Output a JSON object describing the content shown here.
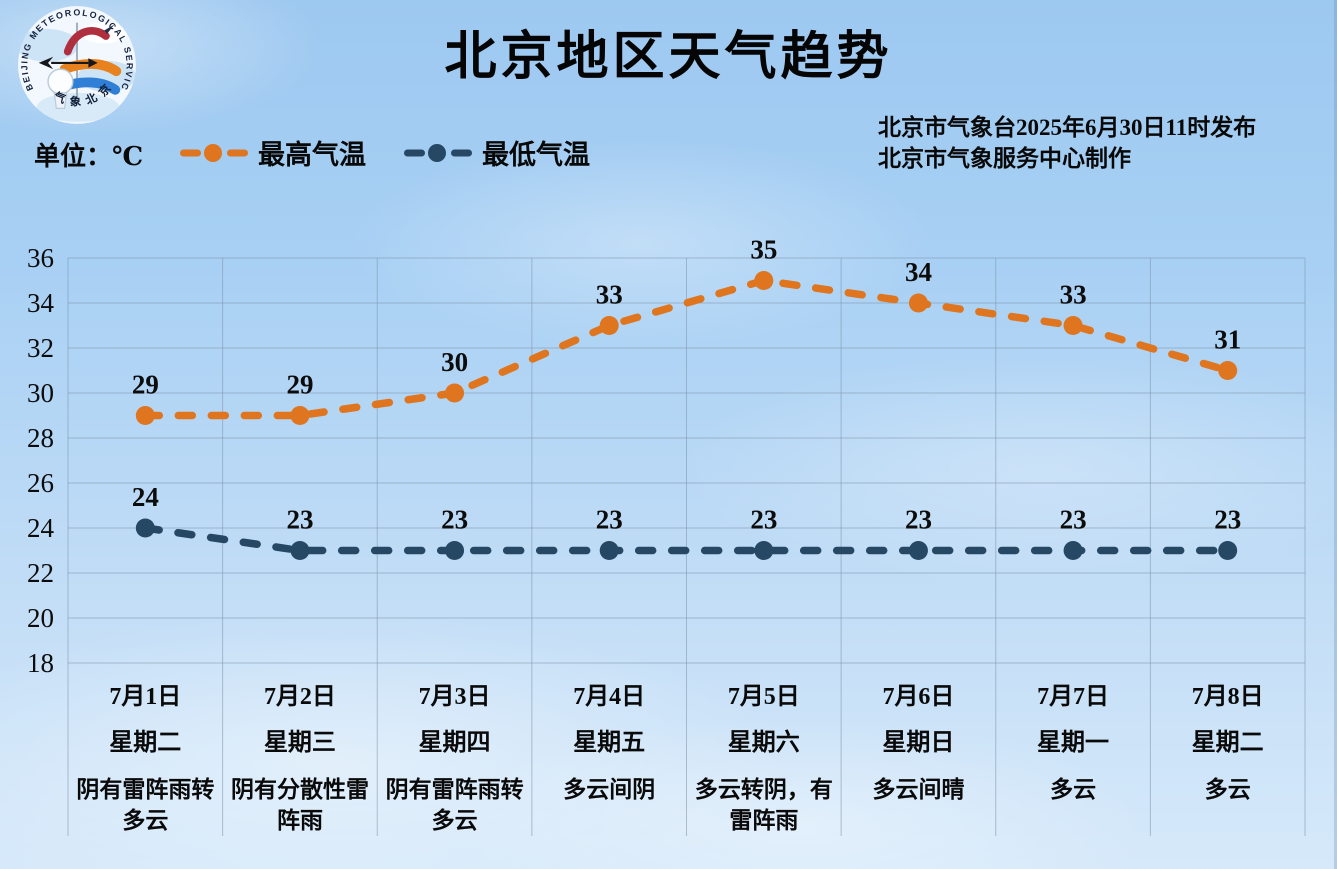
{
  "page_title": "北京地区天气趋势",
  "logo": {
    "arc_top_text": "BEIJING METEOROLOGICAL SERVICE",
    "arc_bottom_text": "气象北京"
  },
  "header": {
    "unit_label": "单位：℃",
    "publish_line1": "北京市气象台2025年6月30日11时发布",
    "publish_line2": "北京市气象服务中心制作"
  },
  "chart_data": {
    "type": "line",
    "title": "北京地区天气趋势",
    "unit": "℃",
    "legend_position": "top",
    "grid": true,
    "ylim": [
      18,
      36
    ],
    "ytick_step": 2,
    "yticks": [
      36,
      34,
      32,
      30,
      28,
      26,
      24,
      22,
      20,
      18
    ],
    "categories": [
      {
        "date": "7月1日",
        "weekday": "星期二",
        "weather": "阴有雷阵雨转多云"
      },
      {
        "date": "7月2日",
        "weekday": "星期三",
        "weather": "阴有分散性雷阵雨"
      },
      {
        "date": "7月3日",
        "weekday": "星期四",
        "weather": "阴有雷阵雨转多云"
      },
      {
        "date": "7月4日",
        "weekday": "星期五",
        "weather": "多云间阴"
      },
      {
        "date": "7月5日",
        "weekday": "星期六",
        "weather": "多云转阴，有雷阵雨"
      },
      {
        "date": "7月6日",
        "weekday": "星期日",
        "weather": "多云间晴"
      },
      {
        "date": "7月7日",
        "weekday": "星期一",
        "weather": "多云"
      },
      {
        "date": "7月8日",
        "weekday": "星期二",
        "weather": "多云"
      }
    ],
    "series": [
      {
        "name": "最高气温",
        "color": "#df751e",
        "values": [
          29,
          29,
          30,
          33,
          35,
          34,
          33,
          31
        ]
      },
      {
        "name": "最低气温",
        "color": "#264864",
        "values": [
          24,
          23,
          23,
          23,
          23,
          23,
          23,
          23
        ]
      }
    ]
  }
}
